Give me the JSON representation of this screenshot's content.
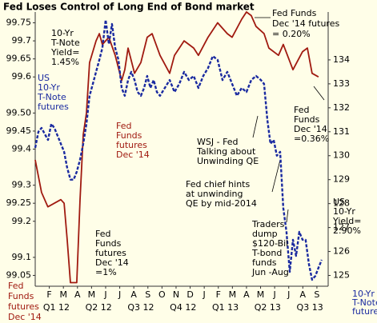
{
  "chart_data": {
    "type": "line",
    "title": "Fed Loses Control of Long End of Bond market",
    "xlim": [
      0,
      20.8
    ],
    "xticks": [
      {
        "value": 1,
        "label": "F"
      },
      {
        "value": 2,
        "label": "M"
      },
      {
        "value": 3,
        "label": "A"
      },
      {
        "value": 4,
        "label": "M"
      },
      {
        "value": 5,
        "label": "J"
      },
      {
        "value": 6,
        "label": "J"
      },
      {
        "value": 7,
        "label": "A"
      },
      {
        "value": 8,
        "label": "S"
      },
      {
        "value": 9,
        "label": "O"
      },
      {
        "value": 10,
        "label": "N"
      },
      {
        "value": 11,
        "label": "D"
      },
      {
        "value": 12,
        "label": "J"
      },
      {
        "value": 13,
        "label": "F"
      },
      {
        "value": 14,
        "label": "M"
      },
      {
        "value": 15,
        "label": "A"
      },
      {
        "value": 16,
        "label": "M"
      },
      {
        "value": 17,
        "label": "J"
      },
      {
        "value": 18,
        "label": "J"
      },
      {
        "value": 19,
        "label": "A"
      },
      {
        "value": 20,
        "label": "S"
      }
    ],
    "quarters": [
      {
        "value": 1.5,
        "label": "Q1 12"
      },
      {
        "value": 4.5,
        "label": "Q2 12"
      },
      {
        "value": 7.5,
        "label": "Q3 12"
      },
      {
        "value": 10.5,
        "label": "Q4 12"
      },
      {
        "value": 13.5,
        "label": "Q1 13"
      },
      {
        "value": 16.5,
        "label": "Q2 13"
      },
      {
        "value": 19.5,
        "label": "Q3 13"
      }
    ],
    "ylim": [
      99.02,
      99.78
    ],
    "yticks": [
      99.05,
      99.1,
      99.2,
      99.25,
      99.3,
      99.4,
      99.45,
      {
        "value": 99.5,
        "label": "99.50"
      },
      99.6,
      99.65,
      99.7,
      99.75
    ],
    "y2lim": [
      124.55,
      136
    ],
    "y2ticks": [
      125,
      126,
      127,
      128,
      129,
      130,
      131,
      132,
      133,
      134
    ],
    "series": [
      {
        "name": "Fed Funds futures Dec '14",
        "color": "#a01a10",
        "dashed": false,
        "x": [
          0,
          0.45,
          0.9,
          1.36,
          1.82,
          2.05,
          2.27,
          2.5,
          2.95,
          3.18,
          3.41,
          3.64,
          3.86,
          4.32,
          4.55,
          4.77,
          5.23,
          5.68,
          6.14,
          6.36,
          6.59,
          7.05,
          7.5,
          7.95,
          8.3,
          8.86,
          9.55,
          9.89,
          10.57,
          11.25,
          11.59,
          12.27,
          12.95,
          13.64,
          13.98,
          14.66,
          15.0,
          15.34,
          15.68,
          16.25,
          16.59,
          17.27,
          17.61,
          18.3,
          18.98,
          19.32,
          19.66,
          20.11
        ],
        "values": [
          99.37,
          99.28,
          99.24,
          99.25,
          99.26,
          99.25,
          99.15,
          99.03,
          99.03,
          99.26,
          99.44,
          99.5,
          99.64,
          99.7,
          99.72,
          99.69,
          99.71,
          99.66,
          99.59,
          99.62,
          99.68,
          99.61,
          99.64,
          99.71,
          99.72,
          99.66,
          99.61,
          99.66,
          99.7,
          99.68,
          99.66,
          99.71,
          99.75,
          99.72,
          99.71,
          99.76,
          99.78,
          99.77,
          99.74,
          99.72,
          99.68,
          99.66,
          99.69,
          99.62,
          99.67,
          99.68,
          99.61,
          99.6
        ]
      },
      {
        "name": "10-Yr T-Note futures",
        "color": "#1a2aa0",
        "dashed": true,
        "axis": "y2",
        "x": [
          0,
          0.23,
          0.45,
          0.68,
          0.91,
          1.14,
          1.36,
          1.59,
          1.82,
          2.05,
          2.27,
          2.5,
          2.73,
          2.95,
          3.18,
          3.41,
          3.64,
          3.86,
          4.09,
          4.32,
          4.55,
          4.77,
          5.0,
          5.23,
          5.45,
          5.68,
          5.91,
          6.14,
          6.36,
          6.59,
          6.82,
          7.05,
          7.27,
          7.5,
          7.73,
          7.95,
          8.18,
          8.41,
          8.64,
          8.86,
          9.2,
          9.55,
          9.89,
          10.23,
          10.57,
          10.91,
          11.25,
          11.59,
          11.93,
          12.27,
          12.61,
          12.95,
          13.3,
          13.64,
          13.98,
          14.32,
          14.66,
          15.0,
          15.34,
          15.68,
          16.02,
          16.25,
          16.48,
          16.7,
          16.93,
          17.16,
          17.39,
          17.61,
          17.84,
          18.07,
          18.3,
          18.52,
          18.75,
          18.98,
          19.2,
          19.43,
          19.66,
          19.89,
          20.11,
          20.34
        ],
        "values": [
          130.33,
          131.0,
          131.16,
          130.9,
          130.66,
          131.33,
          131.16,
          130.83,
          130.5,
          130.16,
          129.5,
          129.0,
          129.0,
          129.33,
          129.83,
          130.5,
          131.33,
          132.5,
          133.0,
          133.5,
          134.0,
          134.5,
          135.67,
          134.66,
          135.5,
          134.5,
          134.0,
          132.83,
          132.5,
          133.16,
          133.5,
          133.16,
          132.66,
          132.5,
          132.83,
          133.33,
          132.83,
          133.16,
          132.66,
          132.5,
          132.83,
          133.16,
          132.66,
          133.0,
          133.5,
          133.16,
          133.33,
          132.83,
          133.33,
          133.66,
          134.16,
          134.0,
          133.16,
          133.5,
          133.0,
          132.5,
          132.83,
          132.66,
          133.16,
          133.33,
          133.16,
          133.0,
          131.5,
          130.5,
          130.66,
          130.0,
          130.16,
          127.82,
          126.82,
          125.15,
          126.49,
          125.82,
          126.82,
          126.49,
          126.49,
          125.48,
          124.82,
          124.98,
          125.32,
          125.65
        ]
      }
    ],
    "annotations": [
      {
        "lines": [
          "10-Yr",
          "T-Note",
          "Yield=",
          "1.45%"
        ],
        "color": "#000000"
      },
      {
        "lines": [
          "US",
          "10-Yr",
          "T-Note",
          "futures"
        ],
        "color": "#1a2aa0"
      },
      {
        "lines": [
          "Fed",
          "Funds",
          "futures",
          "Dec '14"
        ],
        "color": "#a01a10"
      },
      {
        "lines": [
          "Fed",
          "Funds",
          "futures",
          "Dec '14"
        ],
        "color": "#a01a10"
      },
      {
        "lines": [
          "Fed",
          "Funds",
          "futures",
          "Dec '14",
          "=1%"
        ],
        "color": "#000000"
      },
      {
        "lines": [
          "Fed Funds",
          "Dec '14 futures",
          "= 0.20%"
        ],
        "color": "#000000"
      },
      {
        "lines": [
          "Fed",
          "Funds",
          "Dec '14",
          "=0.36%"
        ],
        "color": "#000000"
      },
      {
        "lines": [
          "WSJ - Fed",
          "Talking about",
          "Unwinding QE"
        ],
        "color": "#000000"
      },
      {
        "lines": [
          "Fed chief hints",
          "at unwinding",
          "QE by mid-2014"
        ],
        "color": "#000000"
      },
      {
        "lines": [
          "Traders",
          "dump",
          "$120-Bil",
          "T-bond",
          "funds",
          "Jun -Aug"
        ],
        "color": "#000000"
      },
      {
        "lines": [
          "US",
          "10-Yr",
          "Yield=",
          "2.90%"
        ],
        "color": "#000000"
      },
      {
        "lines": [
          "10-Yr",
          "T-Note",
          "futures"
        ],
        "color": "#1a2aa0"
      }
    ]
  }
}
